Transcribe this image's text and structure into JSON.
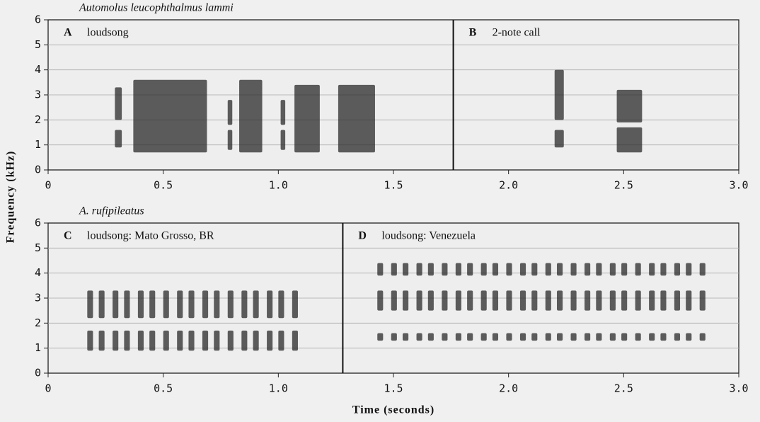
{
  "chart_data": [
    {
      "type": "spectrogram",
      "title": "Automolus leucophthalmus lammi",
      "ylabel": "Frequency (kHz)",
      "xlim": [
        0,
        3
      ],
      "xticks": [
        0,
        0.5,
        {
          "value": 1,
          "label": "1.0"
        },
        1.5,
        {
          "value": 2,
          "label": "2.0"
        },
        2.5,
        {
          "value": 3,
          "label": "3.0"
        }
      ],
      "ylim": [
        0,
        6
      ],
      "yticks": [
        0,
        1,
        2,
        3,
        4,
        5,
        6
      ],
      "grid": true,
      "divider": 1.76,
      "panels": [
        {
          "letter": "A",
          "label": "loudsong",
          "notes": [
            {
              "t": [
                0.29
              ],
              "dur": 0.03,
              "bands": [
                [
                  0.9,
                  1.6
                ],
                [
                  2.0,
                  3.3
                ]
              ]
            },
            {
              "t": [
                0.37
              ],
              "dur": 0.32,
              "bands": [
                [
                  0.7,
                  3.6
                ]
              ]
            },
            {
              "t": [
                0.78,
                1.01
              ],
              "dur": 0.02,
              "bands": [
                [
                  0.8,
                  1.6
                ],
                [
                  1.8,
                  2.8
                ]
              ]
            },
            {
              "t": [
                0.83
              ],
              "dur": 0.1,
              "bands": [
                [
                  0.7,
                  3.6
                ]
              ]
            },
            {
              "t": [
                1.07
              ],
              "dur": 0.11,
              "bands": [
                [
                  0.7,
                  3.4
                ]
              ]
            },
            {
              "t": [
                1.26
              ],
              "dur": 0.16,
              "bands": [
                [
                  0.7,
                  3.4
                ]
              ]
            }
          ]
        },
        {
          "letter": "B",
          "label": "2-note call",
          "notes": [
            {
              "t": [
                2.2
              ],
              "dur": 0.04,
              "bands": [
                [
                  0.9,
                  1.6
                ],
                [
                  2.0,
                  4.0
                ]
              ]
            },
            {
              "t": [
                2.47
              ],
              "dur": 0.11,
              "bands": [
                [
                  0.7,
                  1.7
                ],
                [
                  1.9,
                  3.2
                ]
              ]
            }
          ]
        }
      ]
    },
    {
      "type": "spectrogram",
      "title": "A. rufipileatus",
      "xlabel": "Time (seconds)",
      "xlim": [
        0,
        3
      ],
      "xticks": [
        0,
        0.5,
        {
          "value": 1,
          "label": "1.0"
        },
        1.5,
        {
          "value": 2,
          "label": "2.0"
        },
        2.5,
        {
          "value": 3,
          "label": "3.0"
        }
      ],
      "ylim": [
        0,
        6
      ],
      "yticks": [
        0,
        1,
        2,
        3,
        4,
        5,
        6
      ],
      "grid": true,
      "divider": 1.28,
      "panels": [
        {
          "letter": "C",
          "label": "loudsong: Mato Grosso, BR",
          "notes": [
            {
              "t": [
                0.17,
                0.22,
                0.28,
                0.33,
                0.39,
                0.44,
                0.5,
                0.56,
                0.61,
                0.67,
                0.72,
                0.78,
                0.84,
                0.89,
                0.95,
                1.0,
                1.06
              ],
              "dur": 0.025,
              "bands": [
                [
                  0.9,
                  1.7
                ],
                [
                  2.2,
                  3.3
                ]
              ]
            }
          ]
        },
        {
          "letter": "D",
          "label": "loudsong: Venezuela",
          "notes": [
            {
              "t": [
                1.43,
                1.49,
                1.54,
                1.6,
                1.65,
                1.71,
                1.77,
                1.82,
                1.88,
                1.93,
                1.99,
                2.05,
                2.1,
                2.16,
                2.21,
                2.27,
                2.33,
                2.38,
                2.44,
                2.49,
                2.55,
                2.61,
                2.66,
                2.72,
                2.77,
                2.83
              ],
              "dur": 0.025,
              "bands": [
                [
                  1.3,
                  1.6
                ],
                [
                  2.5,
                  3.3
                ],
                [
                  3.9,
                  4.4
                ]
              ]
            }
          ]
        }
      ]
    }
  ]
}
